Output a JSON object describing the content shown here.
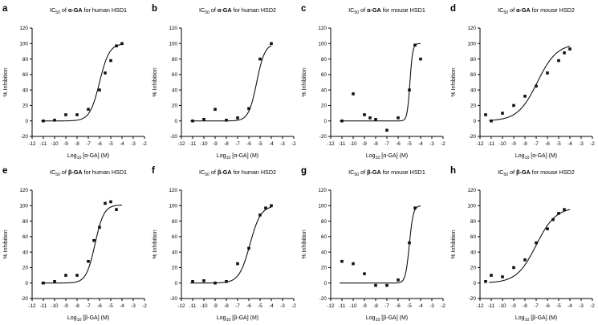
{
  "figure": {
    "background": "#ffffff",
    "axis_color": "#000000",
    "marker_color": "#111111",
    "curve_color": "#111111",
    "xlim": [
      -12,
      -2
    ],
    "ylim": [
      -20,
      120
    ],
    "x_ticks": [
      -12,
      -11,
      -10,
      -9,
      -8,
      -7,
      -6,
      -5,
      -4,
      -3,
      -2
    ],
    "y_ticks": [
      -20,
      0,
      20,
      40,
      60,
      80,
      100,
      120
    ],
    "curve_range": [
      -11.2,
      -4.0
    ],
    "grid": false,
    "legend": false
  },
  "chart_data": [
    {
      "id": "a",
      "type": "scatter",
      "title": {
        "pre": "IC",
        "sub": "50",
        "mid": " of ",
        "bold": "α-GA",
        "post": " for human HSD1"
      },
      "xlabel": {
        "pre": "Log",
        "sub": "10",
        "post": " [α-GA] (M)"
      },
      "ylabel": "% Inhibition",
      "x": [
        -11,
        -10,
        -9,
        -8,
        -7,
        -6,
        -5.5,
        -5,
        -4.5,
        -4
      ],
      "y": [
        0,
        1,
        8,
        8,
        15,
        40,
        62,
        78,
        97,
        100
      ],
      "fit": {
        "bottom": 0,
        "top": 100,
        "logic50": -6.0,
        "hill": 1.0
      }
    },
    {
      "id": "b",
      "type": "scatter",
      "title": {
        "pre": "IC",
        "sub": "50",
        "mid": " of ",
        "bold": "α-GA",
        "post": " for human HSD2"
      },
      "xlabel": {
        "pre": "Log",
        "sub": "10",
        "post": " [α-GA] (M)"
      },
      "ylabel": "% Inhibition",
      "x": [
        -11,
        -10,
        -9,
        -8,
        -7,
        -6,
        -5,
        -4
      ],
      "y": [
        0,
        2,
        15,
        1,
        4,
        16,
        80,
        100
      ],
      "fit": {
        "bottom": 0,
        "top": 100,
        "logic50": -5.3,
        "hill": 1.2
      }
    },
    {
      "id": "c",
      "type": "scatter",
      "title": {
        "pre": "IC",
        "sub": "50",
        "mid": " of ",
        "bold": "α-GA",
        "post": " for mouse HSD1"
      },
      "xlabel": {
        "pre": "Log",
        "sub": "10",
        "post": " [α-GA] (M)"
      },
      "ylabel": "% Inhibition",
      "x": [
        -11,
        -10,
        -9,
        -8.5,
        -8,
        -7,
        -6,
        -5,
        -4.5,
        -4
      ],
      "y": [
        0,
        35,
        8,
        4,
        2,
        -12,
        4,
        40,
        98,
        80
      ],
      "fit": {
        "bottom": 0,
        "top": 100,
        "logic50": -4.95,
        "hill": 3.5
      }
    },
    {
      "id": "d",
      "type": "scatter",
      "title": {
        "pre": "IC",
        "sub": "50",
        "mid": " of ",
        "bold": "α-GA",
        "post": " for mouse HSD2"
      },
      "xlabel": {
        "pre": "Log",
        "sub": "10",
        "post": " [α-GA] (M)"
      },
      "ylabel": "% Inhibition",
      "x": [
        -11.5,
        -11,
        -10,
        -9,
        -8,
        -7,
        -6,
        -5,
        -4.5,
        -4
      ],
      "y": [
        8,
        0,
        10,
        20,
        32,
        45,
        62,
        78,
        88,
        93
      ],
      "fit": {
        "bottom": 0,
        "top": 100,
        "logic50": -6.9,
        "hill": 0.5
      }
    },
    {
      "id": "e",
      "type": "scatter",
      "title": {
        "pre": "IC",
        "sub": "50",
        "mid": " of ",
        "bold": "β-GA",
        "post": " for human HSD1"
      },
      "xlabel": {
        "pre": "Log",
        "sub": "10",
        "post": " [β-GA] (M)"
      },
      "ylabel": "% Inhibition",
      "x": [
        -11,
        -10,
        -9,
        -8,
        -7,
        -6.5,
        -6,
        -5.5,
        -5,
        -4.5
      ],
      "y": [
        0,
        2,
        10,
        10,
        28,
        55,
        72,
        103,
        105,
        95
      ],
      "fit": {
        "bottom": 0,
        "top": 101,
        "logic50": -6.4,
        "hill": 1.1
      }
    },
    {
      "id": "f",
      "type": "scatter",
      "title": {
        "pre": "IC",
        "sub": "50",
        "mid": " of ",
        "bold": "β-GA",
        "post": " for human HSD2"
      },
      "xlabel": {
        "pre": "Log",
        "sub": "10",
        "post": " [β-GA] (M)"
      },
      "ylabel": "% Inhibition",
      "x": [
        -11,
        -10,
        -9,
        -8,
        -7,
        -6,
        -5,
        -4.5,
        -4
      ],
      "y": [
        2,
        3,
        0,
        2,
        25,
        45,
        88,
        97,
        100
      ],
      "fit": {
        "bottom": 0,
        "top": 100,
        "logic50": -5.9,
        "hill": 0.9
      }
    },
    {
      "id": "g",
      "type": "scatter",
      "title": {
        "pre": "IC",
        "sub": "50",
        "mid": " of ",
        "bold": "β-GA",
        "post": " for mouse HSD1"
      },
      "xlabel": {
        "pre": "Log",
        "sub": "10",
        "post": " [β-GA] (M)"
      },
      "ylabel": "% Inhibition",
      "x": [
        -11,
        -10,
        -9,
        -8,
        -7,
        -6,
        -5,
        -4.5
      ],
      "y": [
        28,
        25,
        12,
        -3,
        -3,
        4,
        52,
        97
      ],
      "fit": {
        "bottom": 0,
        "top": 100,
        "logic50": -5.0,
        "hill": 2.5
      }
    },
    {
      "id": "h",
      "type": "scatter",
      "title": {
        "pre": "IC",
        "sub": "50",
        "mid": " of ",
        "bold": "β-GA",
        "post": " for mouse HSD2"
      },
      "xlabel": {
        "pre": "Log",
        "sub": "10",
        "post": " [β-GA] (M)"
      },
      "ylabel": "% Inhibition",
      "x": [
        -11.5,
        -11,
        -10,
        -9,
        -8,
        -7,
        -6,
        -5.5,
        -5,
        -4.5
      ],
      "y": [
        2,
        10,
        8,
        20,
        30,
        52,
        70,
        82,
        90,
        95
      ],
      "fit": {
        "bottom": 0,
        "top": 98,
        "logic50": -7.0,
        "hill": 0.5
      }
    }
  ]
}
